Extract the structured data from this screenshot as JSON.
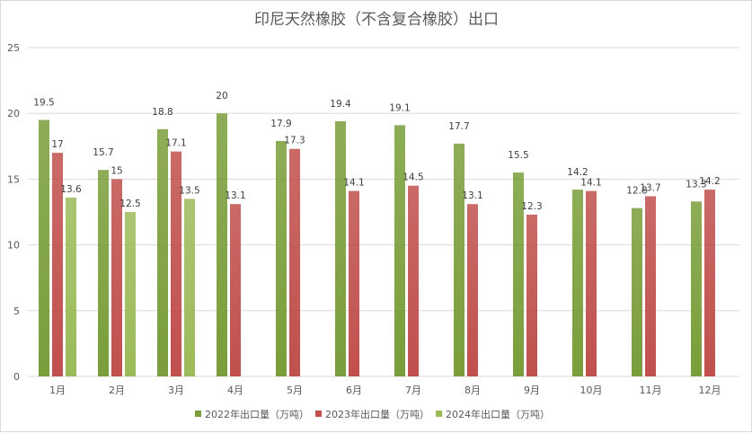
{
  "chart_data": {
    "type": "bar",
    "title": "印尼天然橡胶（不含复合橡胶）出口",
    "categories": [
      "1月",
      "2月",
      "3月",
      "4月",
      "5月",
      "6月",
      "7月",
      "8月",
      "9月",
      "10月",
      "11月",
      "12月"
    ],
    "series": [
      {
        "name": "2022年出口量（万吨）",
        "color": "#7a9e3a",
        "values": [
          19.5,
          15.7,
          18.8,
          20,
          17.9,
          19.4,
          19.1,
          17.7,
          15.5,
          14.2,
          12.8,
          13.3
        ]
      },
      {
        "name": "2023年出口量（万吨）",
        "color": "#c0504d",
        "values": [
          17,
          15,
          17.1,
          13.1,
          17.3,
          14.1,
          14.5,
          13.1,
          12.3,
          14.1,
          13.7,
          14.2
        ]
      },
      {
        "name": "2024年出口量（万吨）",
        "color": "#9bbb59",
        "values": [
          13.6,
          12.5,
          13.5,
          null,
          null,
          null,
          null,
          null,
          null,
          null,
          null,
          null
        ]
      }
    ],
    "ylim": [
      0,
      25
    ],
    "yticks": [
      0,
      5,
      10,
      15,
      20,
      25
    ],
    "grid": true,
    "legend_position": "bottom"
  }
}
